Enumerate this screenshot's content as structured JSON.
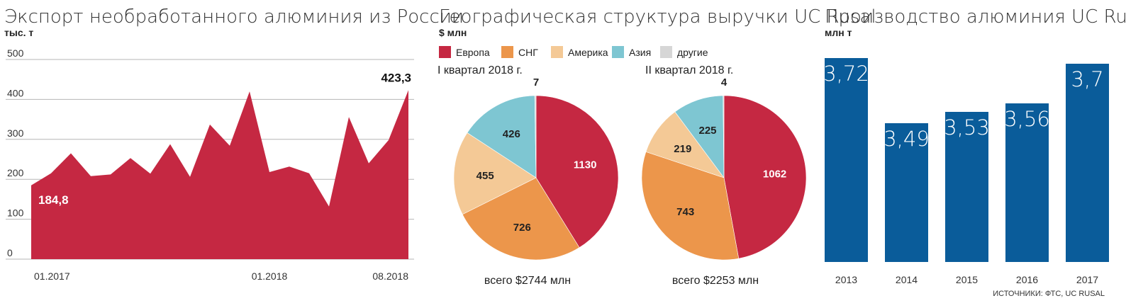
{
  "chart_data": [
    {
      "type": "area",
      "title": "Экспорт необработанного алюминия из России",
      "ylabel": "тыс. т",
      "ylim": [
        0,
        500
      ],
      "yticks": [
        "500",
        "400",
        "300",
        "200",
        "100",
        "0"
      ],
      "xticks": [
        "01.2017",
        "01.2018",
        "08.2018"
      ],
      "grid": true,
      "color": "#c52842",
      "x": [
        "01.2017",
        "02.2017",
        "03.2017",
        "04.2017",
        "05.2017",
        "06.2017",
        "07.2017",
        "08.2017",
        "09.2017",
        "10.2017",
        "11.2017",
        "12.2017",
        "01.2018",
        "02.2018",
        "03.2018",
        "04.2018",
        "05.2018",
        "06.2018",
        "07.2018",
        "08.2018"
      ],
      "values": [
        184.8,
        215,
        265,
        208,
        212,
        253,
        214,
        288,
        206,
        337,
        284,
        420,
        218,
        232,
        215,
        132,
        356,
        240,
        298,
        423.3
      ],
      "annotations": [
        {
          "x": "01.2017",
          "text": "184,8"
        },
        {
          "x": "08.2018",
          "text": "423,3"
        }
      ]
    },
    {
      "type": "pie",
      "title": "Географическая структура выручки UC Rusal",
      "ylabel": "$ млн",
      "legend": [
        {
          "name": "Европа",
          "color": "#c52842"
        },
        {
          "name": "СНГ",
          "color": "#ec964b"
        },
        {
          "name": "Америка",
          "color": "#f4c996"
        },
        {
          "name": "Азия",
          "color": "#7ec6d2"
        },
        {
          "name": "другие",
          "color": "#d6d6d6"
        }
      ],
      "pies": [
        {
          "subtitle": "I квартал 2018 г.",
          "total": "всего $2744 млн",
          "values": [
            1130,
            726,
            455,
            426,
            7
          ],
          "labels": [
            "1130",
            "726",
            "455",
            "426",
            "7"
          ]
        },
        {
          "subtitle": "II квартал 2018 г.",
          "total": "всего $2253 млн",
          "values": [
            1062,
            743,
            219,
            225,
            4
          ],
          "labels": [
            "1062",
            "743",
            "219",
            "225",
            "4"
          ]
        }
      ]
    },
    {
      "type": "bar",
      "title": "Производство алюминия UC Rusal",
      "ylabel": "млн т",
      "color": "#0a5c9a",
      "categories": [
        "2013",
        "2014",
        "2015",
        "2016",
        "2017"
      ],
      "values": [
        3.72,
        3.49,
        3.53,
        3.56,
        3.7
      ],
      "labels": [
        "3,72",
        "3,49",
        "3,53",
        "3,56",
        "3,7"
      ]
    }
  ],
  "source": "ИСТОЧНИКИ: ФТС, UC RUSAL"
}
